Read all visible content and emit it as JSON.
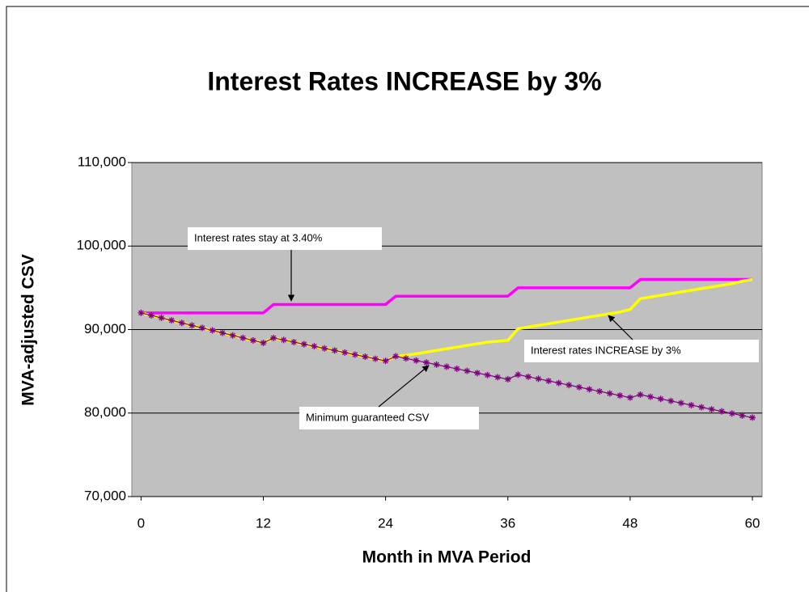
{
  "chart_data": {
    "type": "line",
    "title": "Interest Rates INCREASE by 3%",
    "x_label": "Month in MVA Period",
    "y_label": "MVA-adjusted CSV",
    "x": [
      0,
      1,
      2,
      3,
      4,
      5,
      6,
      7,
      8,
      9,
      10,
      11,
      12,
      13,
      14,
      15,
      16,
      17,
      18,
      19,
      20,
      21,
      22,
      23,
      24,
      25,
      26,
      27,
      28,
      29,
      30,
      31,
      32,
      33,
      34,
      35,
      36,
      37,
      38,
      39,
      40,
      41,
      42,
      43,
      44,
      45,
      46,
      47,
      48,
      49,
      50,
      51,
      52,
      53,
      54,
      55,
      56,
      57,
      58,
      59,
      60
    ],
    "series": [
      {
        "name": "Interest rates stay at 3.40%",
        "color": "#ff00ff",
        "marker": false,
        "values": [
          92000,
          92000,
          92000,
          92000,
          92000,
          92000,
          92000,
          92000,
          92000,
          92000,
          92000,
          92000,
          92000,
          93000,
          93000,
          93000,
          93000,
          93000,
          93000,
          93000,
          93000,
          93000,
          93000,
          93000,
          93000,
          94000,
          94000,
          94000,
          94000,
          94000,
          94000,
          94000,
          94000,
          94000,
          94000,
          94000,
          94000,
          95000,
          95000,
          95000,
          95000,
          95000,
          95000,
          95000,
          95000,
          95000,
          95000,
          95000,
          95000,
          96000,
          96000,
          96000,
          96000,
          96000,
          96000,
          96000,
          96000,
          96000,
          96000,
          96000,
          96000
        ]
      },
      {
        "name": "Interest rates INCREASE by 3%",
        "color": "#ffff00",
        "marker": false,
        "values": [
          92000,
          91700,
          91400,
          91100,
          90800,
          90500,
          90200,
          89900,
          89600,
          89300,
          89000,
          88700,
          88400,
          89000,
          88750,
          88500,
          88250,
          88000,
          87750,
          87500,
          87250,
          87000,
          86750,
          86500,
          86250,
          86800,
          86900,
          87100,
          87300,
          87500,
          87700,
          87900,
          88100,
          88300,
          88500,
          88600,
          88700,
          90100,
          90300,
          90500,
          90700,
          90900,
          91100,
          91300,
          91500,
          91700,
          91900,
          92100,
          92400,
          93700,
          93900,
          94100,
          94300,
          94500,
          94700,
          94900,
          95100,
          95300,
          95500,
          95800,
          96000
        ]
      },
      {
        "name": "Minimum guaranteed CSV",
        "color": "#800080",
        "marker": true,
        "values": [
          92000,
          91700,
          91400,
          91100,
          90800,
          90500,
          90200,
          89900,
          89600,
          89300,
          89000,
          88700,
          88400,
          89000,
          88750,
          88500,
          88250,
          88000,
          87750,
          87500,
          87250,
          87000,
          86750,
          86500,
          86250,
          86800,
          86550,
          86300,
          86050,
          85800,
          85550,
          85300,
          85050,
          84800,
          84550,
          84300,
          84050,
          84600,
          84350,
          84100,
          83850,
          83600,
          83350,
          83100,
          82850,
          82600,
          82350,
          82100,
          81850,
          82200,
          81950,
          81700,
          81450,
          81200,
          80950,
          80700,
          80450,
          80200,
          79950,
          79700,
          79450
        ]
      }
    ],
    "xlim": [
      -0.9,
      60.95
    ],
    "xticks": [
      0,
      12,
      24,
      36,
      48,
      60
    ],
    "ylim": [
      70000,
      110000
    ],
    "yticks": [
      {
        "value": 70000,
        "label": "70,000"
      },
      {
        "value": 80000,
        "label": "80,000"
      },
      {
        "value": 90000,
        "label": "90,000"
      },
      {
        "value": 100000,
        "label": "100,000"
      },
      {
        "value": 110000,
        "label": "110,000"
      }
    ],
    "grid": true
  }
}
